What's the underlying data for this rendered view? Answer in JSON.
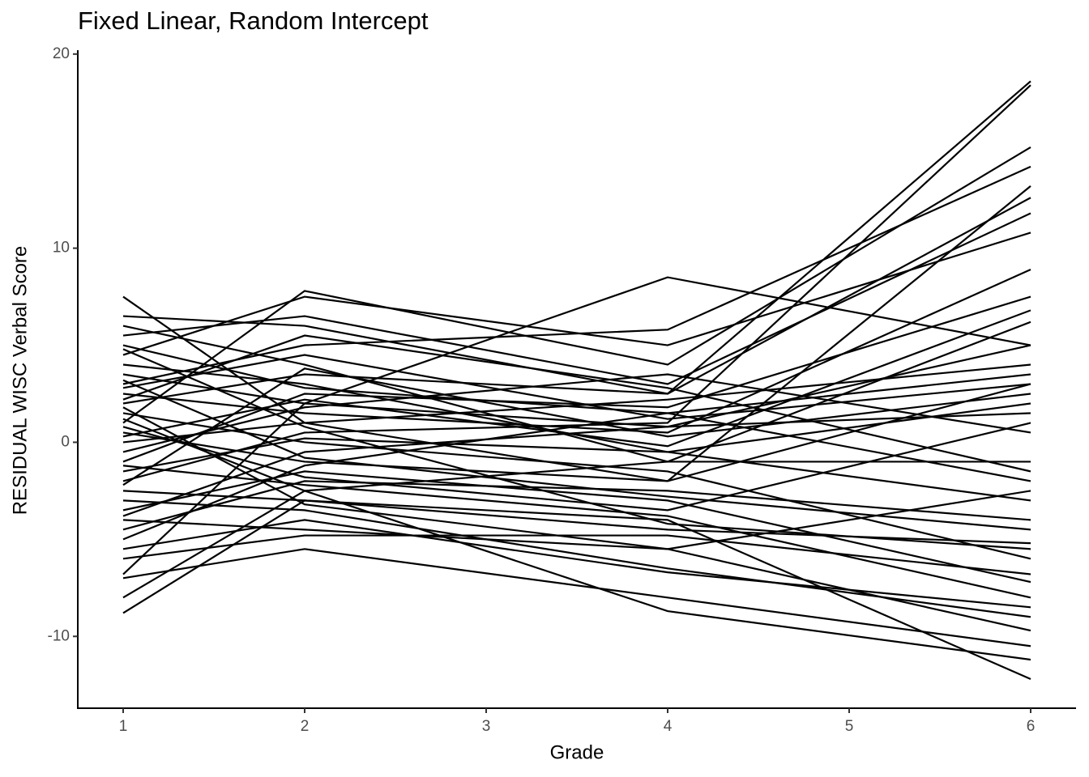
{
  "chart_data": {
    "type": "line",
    "title": "Fixed Linear, Random Intercept",
    "x_label": "Grade",
    "y_label": "RESIDUAL WISC Verbal Score",
    "x": [
      1,
      2,
      4,
      6
    ],
    "color": "#000000",
    "xlim": [
      0.75,
      6.25
    ],
    "xticks": [
      1,
      2,
      3,
      4,
      5,
      6
    ],
    "ylim": [
      -13.7,
      20.2
    ],
    "yticks": [
      -10,
      0,
      10,
      20
    ],
    "series": [
      {
        "values": [
          6.5,
          6.0,
          2.5,
          18.6
        ]
      },
      {
        "values": [
          -2.0,
          0.5,
          1.0,
          18.4
        ]
      },
      {
        "values": [
          1.0,
          7.8,
          4.0,
          15.2
        ]
      },
      {
        "values": [
          7.5,
          1.0,
          -2.0,
          3.0
        ]
      },
      {
        "values": [
          -6.8,
          2.0,
          8.5,
          5.0
        ]
      },
      {
        "values": [
          -8.8,
          -3.0,
          -4.0,
          -12.2
        ]
      },
      {
        "values": [
          -8.0,
          -2.5,
          -8.7,
          -11.2
        ]
      },
      {
        "values": [
          -7.0,
          -5.5,
          -8.0,
          -10.5
        ]
      },
      {
        "values": [
          3.0,
          5.0,
          5.8,
          14.2
        ]
      },
      {
        "values": [
          0.5,
          -1.0,
          -2.0,
          13.2
        ]
      },
      {
        "values": [
          2.0,
          3.5,
          2.5,
          12.6
        ]
      },
      {
        "values": [
          5.5,
          6.5,
          3.0,
          11.8
        ]
      },
      {
        "values": [
          -4.0,
          -4.5,
          -5.5,
          -9.7
        ]
      },
      {
        "values": [
          -3.0,
          -3.5,
          -6.5,
          -9.0
        ]
      },
      {
        "values": [
          4.5,
          7.5,
          5.0,
          10.8
        ]
      },
      {
        "values": [
          -5.5,
          -4.0,
          -6.7,
          -8.5
        ]
      },
      {
        "values": [
          2.5,
          1.5,
          0.5,
          8.9
        ]
      },
      {
        "values": [
          -1.0,
          2.5,
          1.8,
          7.5
        ]
      },
      {
        "values": [
          6.0,
          4.0,
          -1.0,
          6.2
        ]
      },
      {
        "values": [
          -3.5,
          -1.5,
          -3.0,
          -7.2
        ]
      },
      {
        "values": [
          1.5,
          0.0,
          -1.5,
          -6.0
        ]
      },
      {
        "values": [
          3.5,
          2.0,
          0.8,
          5.0
        ]
      },
      {
        "values": [
          -2.5,
          -3.0,
          -4.5,
          -5.2
        ]
      },
      {
        "values": [
          0.0,
          1.0,
          2.2,
          4.0
        ]
      },
      {
        "values": [
          -4.5,
          -2.0,
          -2.5,
          -4.0
        ]
      },
      {
        "values": [
          2.8,
          4.5,
          1.2,
          3.0
        ]
      },
      {
        "values": [
          -1.5,
          0.2,
          -0.5,
          2.0
        ]
      },
      {
        "values": [
          4.0,
          3.0,
          -0.5,
          -3.0
        ]
      },
      {
        "values": [
          -6.0,
          -4.8,
          -4.8,
          -6.8
        ]
      },
      {
        "values": [
          0.8,
          -1.8,
          -3.5,
          1.0
        ]
      },
      {
        "values": [
          5.0,
          2.8,
          1.5,
          -2.0
        ]
      },
      {
        "values": [
          -0.5,
          1.8,
          3.5,
          0.5
        ]
      },
      {
        "values": [
          1.2,
          -2.5,
          -1.0,
          -1.0
        ]
      },
      {
        "values": [
          -2.2,
          3.8,
          0.3,
          2.5
        ]
      },
      {
        "values": [
          3.2,
          -0.8,
          -2.8,
          -4.5
        ]
      },
      {
        "values": [
          -3.8,
          -0.5,
          0.8,
          1.5
        ]
      },
      {
        "values": [
          2.2,
          5.5,
          2.8,
          -1.5
        ]
      },
      {
        "values": [
          -1.2,
          -2.2,
          -3.8,
          -8.0
        ]
      },
      {
        "values": [
          0.3,
          2.2,
          -0.2,
          6.8
        ]
      },
      {
        "values": [
          4.8,
          0.8,
          -4.2,
          -5.5
        ]
      },
      {
        "values": [
          -5.0,
          -1.2,
          1.5,
          3.5
        ]
      },
      {
        "values": [
          1.8,
          -3.2,
          -5.5,
          -2.5
        ]
      }
    ]
  }
}
